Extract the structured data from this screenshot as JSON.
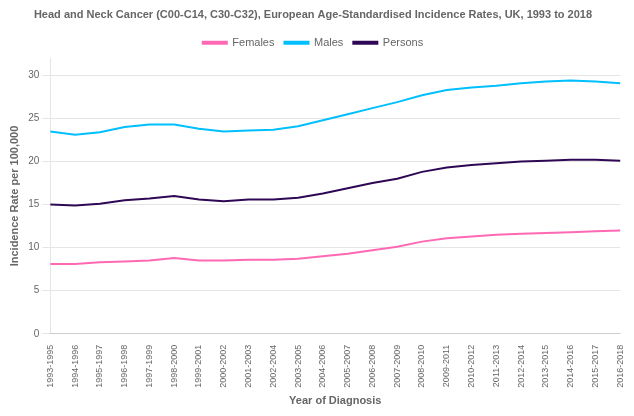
{
  "chart_data": {
    "type": "line",
    "title": "Head and Neck Cancer (C00-C14, C30-C32), European Age-Standardised Incidence Rates, UK, 1993 to 2018",
    "x_label": "Year of Diagnosis",
    "y_label": "Incidence Rate per 100,000",
    "categories": [
      "1993-1995",
      "1994-1996",
      "1995-1997",
      "1996-1998",
      "1997-1999",
      "1998-2000",
      "1999-2001",
      "2000-2002",
      "2001-2003",
      "2002-2004",
      "2003-2005",
      "2004-2006",
      "2005-2007",
      "2006-2008",
      "2007-2009",
      "2008-2010",
      "2009-2011",
      "2010-2012",
      "2011-2013",
      "2012-2014",
      "2013-2015",
      "2014-2016",
      "2015-2017",
      "2016-2018"
    ],
    "series": [
      {
        "name": "Females",
        "color": "#FF69B4",
        "values": [
          8.1,
          8.1,
          8.3,
          8.4,
          8.5,
          8.8,
          8.5,
          8.5,
          8.6,
          8.6,
          8.7,
          9.0,
          9.3,
          9.7,
          10.1,
          10.7,
          11.1,
          11.3,
          11.5,
          11.6,
          11.7,
          11.8,
          11.9,
          12.0
        ]
      },
      {
        "name": "Males",
        "color": "#00BFFF",
        "values": [
          23.5,
          23.1,
          23.4,
          24.0,
          24.3,
          24.3,
          23.8,
          23.5,
          23.6,
          23.7,
          24.1,
          24.8,
          25.5,
          26.2,
          26.9,
          27.7,
          28.3,
          28.6,
          28.8,
          29.1,
          29.3,
          29.4,
          29.3,
          29.1
        ]
      },
      {
        "name": "Persons",
        "color": "#2E0854",
        "values": [
          15.0,
          14.9,
          15.1,
          15.5,
          15.7,
          16.0,
          15.6,
          15.4,
          15.6,
          15.6,
          15.8,
          16.3,
          16.9,
          17.5,
          18.0,
          18.8,
          19.3,
          19.6,
          19.8,
          20.0,
          20.1,
          20.2,
          20.2,
          20.1
        ]
      }
    ],
    "ylim": [
      0,
      32
    ],
    "yticks": [
      0,
      5,
      10,
      15,
      20,
      25,
      30
    ],
    "grid": true,
    "legend": "top"
  }
}
